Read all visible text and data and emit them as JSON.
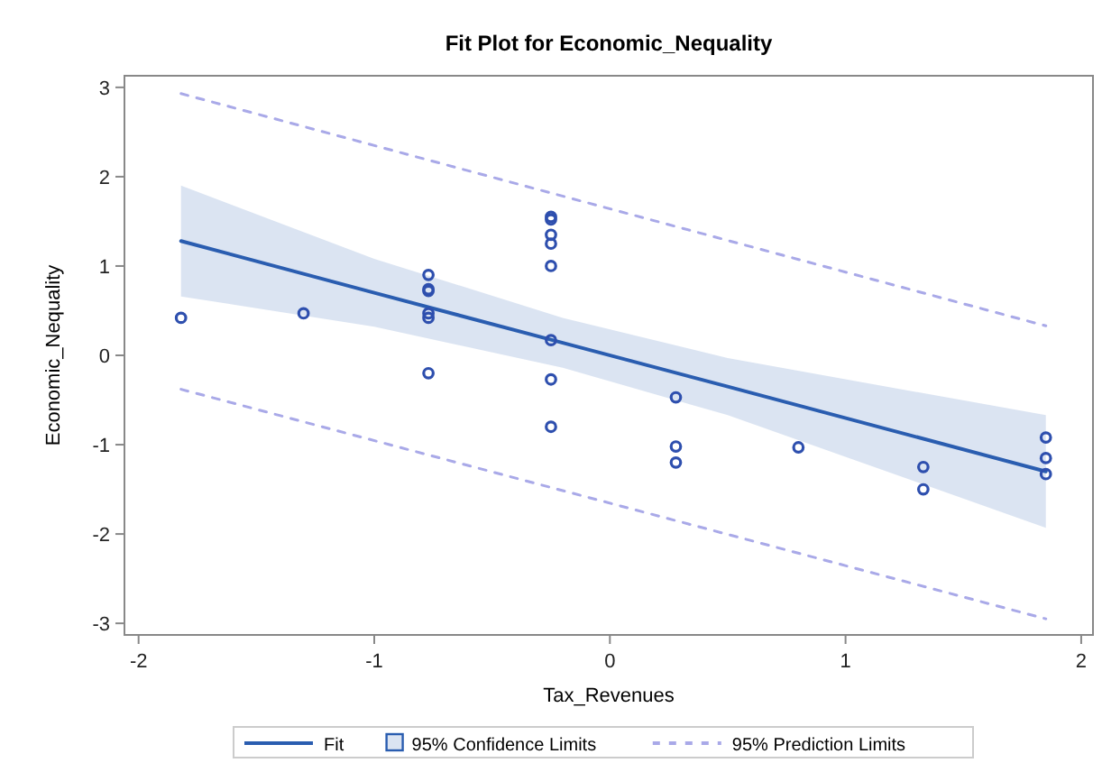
{
  "chart_data": {
    "type": "scatter",
    "title": "Fit Plot for Economic_Nequality",
    "xlabel": "Tax_Revenues",
    "ylabel": "Economic_Nequality",
    "xlim": [
      -2.06,
      2.05
    ],
    "ylim": [
      -3.13,
      3.13
    ],
    "xticks": [
      -2,
      -1,
      0,
      1,
      2
    ],
    "yticks": [
      -3,
      -2,
      -1,
      0,
      1,
      2,
      3
    ],
    "grid": false,
    "legend": "bottom",
    "annotations": [
      "95% Confidence Limits"
    ],
    "series": [
      {
        "name": "Fit",
        "type": "line",
        "line_style": "solid",
        "color": "#2a5db0",
        "x": [
          -1.82,
          -1,
          -0.2,
          0.5,
          1.85
        ],
        "values": [
          1.28,
          0.7,
          0.14,
          -0.35,
          -1.3
        ],
        "lower": [
          0.66,
          0.32,
          -0.14,
          -0.67,
          -1.93
        ],
        "upper": [
          1.9,
          1.08,
          0.42,
          -0.03,
          -0.67
        ]
      },
      {
        "name": "95% Prediction Limits",
        "type": "line",
        "line_style": "dashed",
        "color": "#a9a9e8",
        "x": [
          -1.82,
          1.85
        ],
        "values": [
          2.93,
          0.33
        ]
      },
      {
        "type": "line",
        "line_style": "dashed",
        "color": "#a9a9e8",
        "x": [
          -1.82,
          1.85
        ],
        "values": [
          -0.38,
          -2.95
        ]
      },
      {
        "marker": "circle",
        "color": "#2e4fae",
        "x": [
          -1.82,
          -1.3,
          -0.77,
          -0.77,
          -0.77,
          -0.77,
          -0.77,
          -0.77,
          -0.25,
          -0.25,
          -0.25,
          -0.25,
          -0.25,
          -0.25,
          -0.25,
          -0.25,
          0.28,
          0.28,
          0.28,
          0.8,
          1.33,
          1.33,
          1.85,
          1.85,
          1.85
        ],
        "values": [
          0.42,
          0.47,
          0.9,
          0.74,
          0.72,
          0.47,
          0.42,
          -0.2,
          1.55,
          1.52,
          1.35,
          1.25,
          1.0,
          0.17,
          -0.27,
          -0.8,
          -0.47,
          -1.02,
          -1.2,
          -1.03,
          -1.25,
          -1.5,
          -0.92,
          -1.15,
          -1.33
        ]
      }
    ]
  }
}
